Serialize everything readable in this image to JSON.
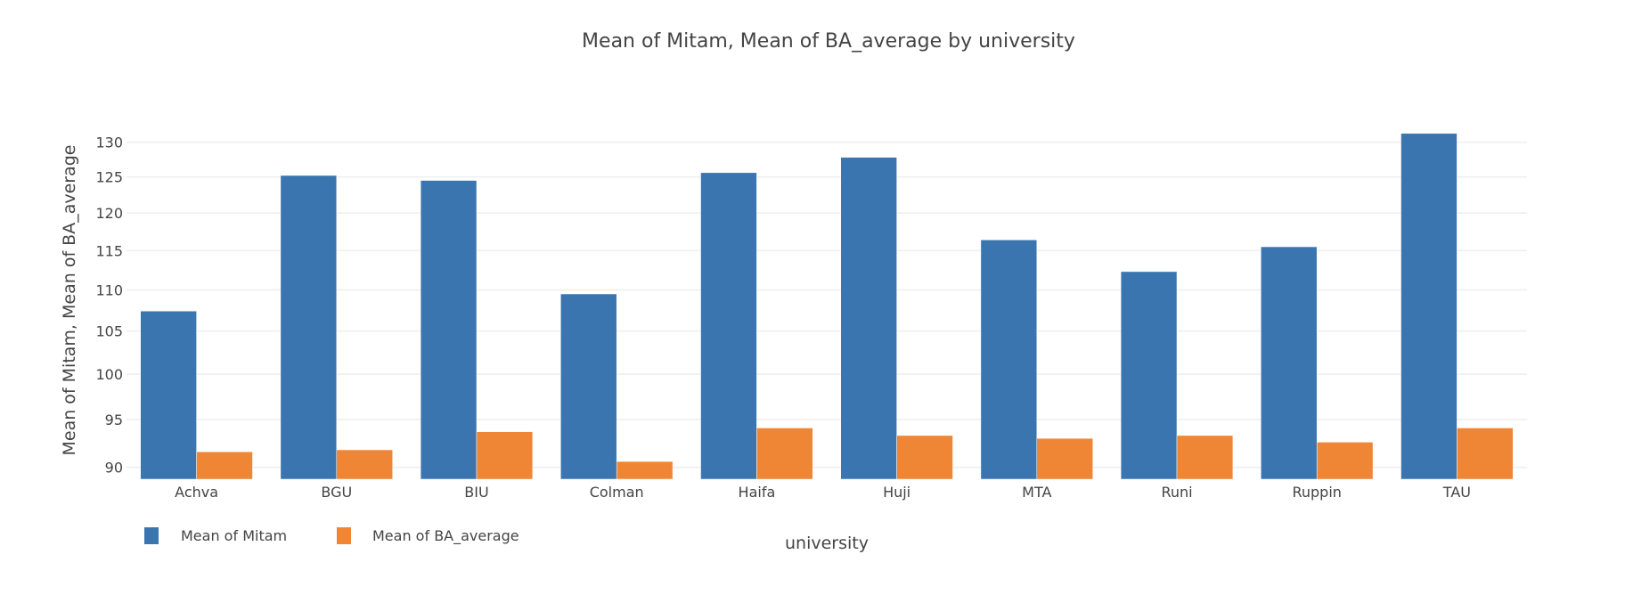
{
  "chart_data": {
    "type": "bar",
    "title": "Mean of Mitam, Mean of BA_average by university",
    "xlabel": "university",
    "ylabel": "Mean of Mitam, Mean of BA_average",
    "yscale": "log",
    "ylim": [
      88.8,
      133
    ],
    "yticks": [
      90,
      95,
      100,
      105,
      110,
      115,
      120,
      125,
      130
    ],
    "grid": true,
    "legend_position": "bottom-left",
    "categories": [
      "Achva",
      "BGU",
      "BIU",
      "Colman",
      "Haifa",
      "Huji",
      "MTA",
      "Runi",
      "Ruppin",
      "TAU"
    ],
    "series": [
      {
        "name": "Mean of Mitam",
        "color": "#3a75af",
        "values": [
          107.4,
          125.2,
          124.5,
          109.5,
          125.6,
          127.8,
          116.4,
          112.3,
          115.5,
          131.3
        ]
      },
      {
        "name": "Mean of BA_average",
        "color": "#ef8636",
        "values": [
          91.6,
          91.8,
          93.7,
          90.6,
          94.1,
          93.3,
          93.0,
          93.3,
          92.6,
          94.1
        ]
      }
    ]
  }
}
